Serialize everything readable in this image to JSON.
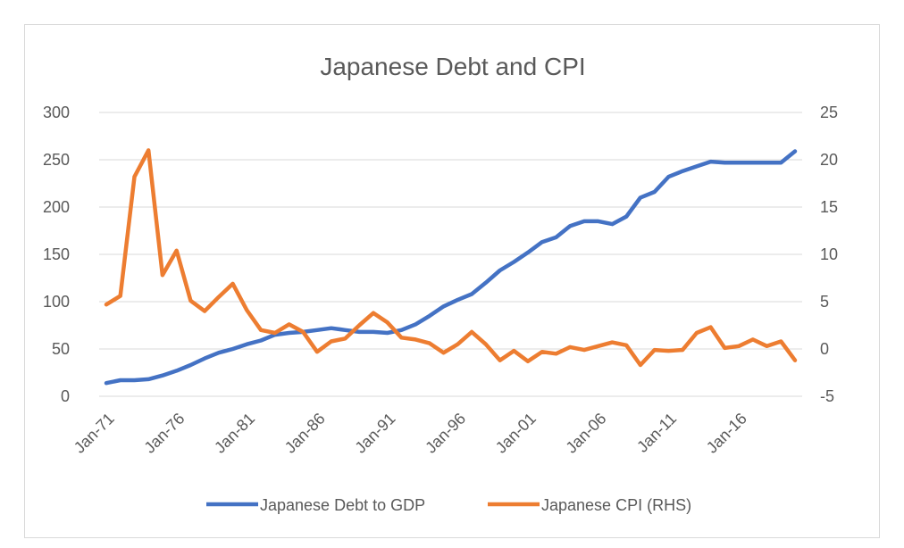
{
  "chart_data": {
    "type": "line",
    "title": "Japanese Debt and CPI",
    "x_tick_labels": [
      "Jan-71",
      "Jan-76",
      "Jan-81",
      "Jan-86",
      "Jan-91",
      "Jan-96",
      "Jan-01",
      "Jan-06",
      "Jan-11",
      "Jan-16"
    ],
    "x_start_year": 1971,
    "x_end_year": 2020,
    "y_left": {
      "min": 0,
      "max": 300,
      "ticks": [
        0,
        50,
        100,
        150,
        200,
        250,
        300
      ]
    },
    "y_right": {
      "min": -5,
      "max": 25,
      "ticks": [
        -5,
        0,
        5,
        10,
        15,
        20,
        25
      ]
    },
    "grid": true,
    "legend_position": "bottom",
    "series": [
      {
        "name": "Japanese Debt to GDP",
        "axis": "left",
        "color": "#4472c4",
        "x": [
          1971,
          1972,
          1973,
          1974,
          1975,
          1976,
          1977,
          1978,
          1979,
          1980,
          1981,
          1982,
          1983,
          1984,
          1985,
          1986,
          1987,
          1988,
          1989,
          1990,
          1991,
          1992,
          1993,
          1994,
          1995,
          1996,
          1997,
          1998,
          1999,
          2000,
          2001,
          2002,
          2003,
          2004,
          2005,
          2006,
          2007,
          2008,
          2009,
          2010,
          2011,
          2012,
          2013,
          2014,
          2015,
          2016,
          2017,
          2018,
          2019,
          2020
        ],
        "values": [
          14,
          17,
          17,
          18,
          22,
          27,
          33,
          40,
          46,
          50,
          55,
          59,
          65,
          67,
          68,
          70,
          72,
          70,
          68,
          68,
          67,
          70,
          76,
          85,
          95,
          102,
          108,
          120,
          133,
          142,
          152,
          163,
          168,
          180,
          185,
          185,
          182,
          190,
          210,
          216,
          232,
          238,
          243,
          248,
          247,
          247,
          247,
          247,
          247,
          259
        ]
      },
      {
        "name": "Japanese CPI (RHS)",
        "axis": "right",
        "color": "#ed7d31",
        "x": [
          1971,
          1972,
          1973,
          1974,
          1975,
          1976,
          1977,
          1978,
          1979,
          1980,
          1981,
          1982,
          1983,
          1984,
          1985,
          1986,
          1987,
          1988,
          1989,
          1990,
          1991,
          1992,
          1993,
          1994,
          1995,
          1996,
          1997,
          1998,
          1999,
          2000,
          2001,
          2002,
          2003,
          2004,
          2005,
          2006,
          2007,
          2008,
          2009,
          2010,
          2011,
          2012,
          2013,
          2014,
          2015,
          2016,
          2017,
          2018,
          2019,
          2020
        ],
        "values": [
          4.7,
          5.6,
          18.2,
          21.0,
          7.8,
          10.4,
          5.1,
          4.0,
          5.5,
          6.9,
          4.1,
          2.0,
          1.7,
          2.6,
          1.8,
          -0.3,
          0.8,
          1.1,
          2.5,
          3.8,
          2.8,
          1.2,
          1.0,
          0.6,
          -0.4,
          0.5,
          1.8,
          0.5,
          -1.2,
          -0.2,
          -1.3,
          -0.3,
          -0.5,
          0.2,
          -0.1,
          0.3,
          0.7,
          0.4,
          -1.7,
          -0.1,
          -0.2,
          -0.1,
          1.7,
          2.3,
          0.1,
          0.3,
          1.0,
          0.3,
          0.8,
          -1.2
        ]
      }
    ]
  }
}
